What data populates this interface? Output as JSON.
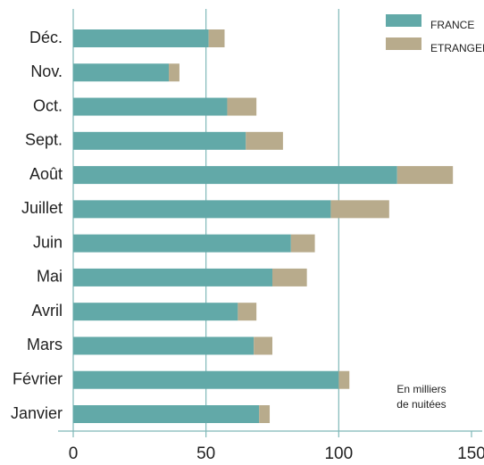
{
  "chart_data": {
    "type": "stacked-barh",
    "categories": [
      "Janvier",
      "Février",
      "Mars",
      "Avril",
      "Mai",
      "Juin",
      "Juillet",
      "Août",
      "Sept.",
      "Oct.",
      "Nov.",
      "Déc."
    ],
    "series": [
      {
        "name": "FRANCE",
        "color": "#62a9a8",
        "values": [
          70,
          100,
          68,
          62,
          75,
          82,
          97,
          122,
          65,
          58,
          36,
          51
        ]
      },
      {
        "name": "ETRANGER",
        "color": "#b8ab8c",
        "values": [
          4,
          4,
          7,
          7,
          13,
          9,
          22,
          21,
          14,
          11,
          4,
          6
        ]
      }
    ],
    "xlim": [
      0,
      150
    ],
    "xticks": [
      0,
      50,
      100,
      150
    ],
    "grid": true,
    "legend": "top-right",
    "annotation": [
      "En milliers",
      "de nuitées"
    ]
  }
}
